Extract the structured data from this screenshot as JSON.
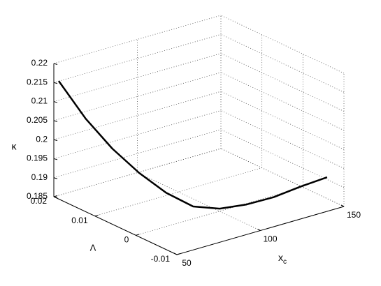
{
  "chart_data": {
    "type": "line3d",
    "xlabel": {
      "text": "x",
      "subscript": "c"
    },
    "ylabel": "Λ",
    "zlabel": "κ",
    "xlim": [
      50,
      150
    ],
    "xticks": [
      50,
      100,
      150
    ],
    "ylim": [
      -0.01,
      0.02
    ],
    "yticks": [
      -0.01,
      0,
      0.01,
      0.02
    ],
    "zlim": [
      0.185,
      0.22
    ],
    "zticks": [
      0.185,
      0.19,
      0.195,
      0.2,
      0.205,
      0.21,
      0.215,
      0.22
    ],
    "grid": true,
    "series": [
      {
        "color": "#000000",
        "x": [
          50,
          60,
          70,
          80,
          90,
          100,
          110,
          120,
          130,
          140,
          150
        ],
        "y": [
          0.0188,
          0.0163,
          0.0139,
          0.0114,
          0.0089,
          0.0064,
          0.004,
          0.0015,
          -0.001,
          -0.0034,
          -0.0059
        ],
        "z": [
          0.216,
          0.2061,
          0.1982,
          0.1918,
          0.1866,
          0.183,
          0.1824,
          0.1835,
          0.1854,
          0.1881,
          0.1906
        ]
      }
    ]
  }
}
